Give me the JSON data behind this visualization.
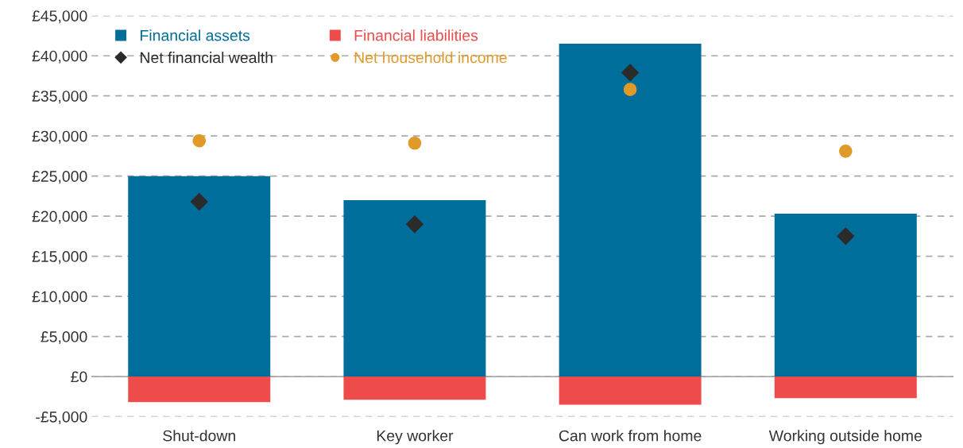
{
  "chart_data": {
    "type": "bar",
    "categories": [
      "Shut-down",
      "Key worker",
      "Can work from home",
      "Working outside home"
    ],
    "series": [
      {
        "name": "Financial assets",
        "color": "#006e9a",
        "values": [
          25000,
          22000,
          41500,
          20300
        ]
      },
      {
        "name": "Financial liabilities",
        "color": "#ee4b4b",
        "values": [
          -3200,
          -2900,
          -3500,
          -2700
        ]
      },
      {
        "name": "Net financial wealth",
        "type": "scatter",
        "marker": "diamond",
        "color": "#2b2b2b",
        "values": [
          21800,
          19000,
          37900,
          17500
        ]
      },
      {
        "name": "Net household income",
        "type": "scatter",
        "marker": "circle",
        "color": "#e09a28",
        "values": [
          29400,
          29100,
          35800,
          28100
        ]
      }
    ],
    "ylim": [
      -5000,
      45000
    ],
    "yticks": [
      {
        "value": -5000,
        "label": "-£5,000"
      },
      {
        "value": 0,
        "label": "£0"
      },
      {
        "value": 5000,
        "label": "£5,000"
      },
      {
        "value": 10000,
        "label": "£10,000"
      },
      {
        "value": 15000,
        "label": "£15,000"
      },
      {
        "value": 20000,
        "label": "£20,000"
      },
      {
        "value": 25000,
        "label": "£25,000"
      },
      {
        "value": 30000,
        "label": "£30,000"
      },
      {
        "value": 35000,
        "label": "£35,000"
      },
      {
        "value": 40000,
        "label": "£40,000"
      },
      {
        "value": 45000,
        "label": "£45,000"
      }
    ],
    "stacked": true,
    "grid": "y",
    "legend": "top left"
  }
}
